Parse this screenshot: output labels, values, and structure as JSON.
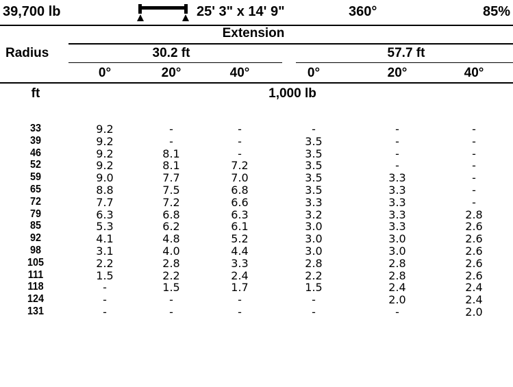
{
  "header": {
    "capacity": "39,700 lb",
    "outrigger_icon": "outrigger-spread-icon",
    "outrigger_spread": "25' 3\" x 14' 9\"",
    "rotation": "360°",
    "percent_tipping": "85%"
  },
  "table": {
    "extension_label": "Extension",
    "radius_label": "Radius",
    "extensions": [
      "30.2 ft",
      "57.7 ft"
    ],
    "angles": [
      "0°",
      "20°",
      "40°",
      "0°",
      "20°",
      "40°"
    ],
    "radius_unit": "ft",
    "capacity_unit": "1,000 lb",
    "rows": [
      {
        "radius": "33",
        "values": [
          "9.2",
          "-",
          "-",
          "-",
          "-",
          "-"
        ]
      },
      {
        "radius": "39",
        "values": [
          "9.2",
          "-",
          "-",
          "3.5",
          "-",
          "-"
        ]
      },
      {
        "radius": "46",
        "values": [
          "9.2",
          "8.1",
          "-",
          "3.5",
          "-",
          "-"
        ]
      },
      {
        "radius": "52",
        "values": [
          "9.2",
          "8.1",
          "7.2",
          "3.5",
          "-",
          "-"
        ]
      },
      {
        "radius": "59",
        "values": [
          "9.0",
          "7.7",
          "7.0",
          "3.5",
          "3.3",
          "-"
        ]
      },
      {
        "radius": "65",
        "values": [
          "8.8",
          "7.5",
          "6.8",
          "3.5",
          "3.3",
          "-"
        ]
      },
      {
        "radius": "72",
        "values": [
          "7.7",
          "7.2",
          "6.6",
          "3.3",
          "3.3",
          "-"
        ]
      },
      {
        "radius": "79",
        "values": [
          "6.3",
          "6.8",
          "6.3",
          "3.2",
          "3.3",
          "2.8"
        ]
      },
      {
        "radius": "85",
        "values": [
          "5.3",
          "6.2",
          "6.1",
          "3.0",
          "3.3",
          "2.6"
        ]
      },
      {
        "radius": "92",
        "values": [
          "4.1",
          "4.8",
          "5.2",
          "3.0",
          "3.0",
          "2.6"
        ]
      },
      {
        "radius": "98",
        "values": [
          "3.1",
          "4.0",
          "4.4",
          "3.0",
          "3.0",
          "2.6"
        ]
      },
      {
        "radius": "105",
        "values": [
          "2.2",
          "2.8",
          "3.3",
          "2.8",
          "2.8",
          "2.6"
        ]
      },
      {
        "radius": "111",
        "values": [
          "1.5",
          "2.2",
          "2.4",
          "2.2",
          "2.8",
          "2.6"
        ]
      },
      {
        "radius": "118",
        "values": [
          "-",
          "1.5",
          "1.7",
          "1.5",
          "2.4",
          "2.4"
        ]
      },
      {
        "radius": "124",
        "values": [
          "-",
          "-",
          "-",
          "-",
          "2.0",
          "2.4"
        ]
      },
      {
        "radius": "131",
        "values": [
          "-",
          "-",
          "-",
          "-",
          "-",
          "2.0"
        ]
      }
    ]
  }
}
